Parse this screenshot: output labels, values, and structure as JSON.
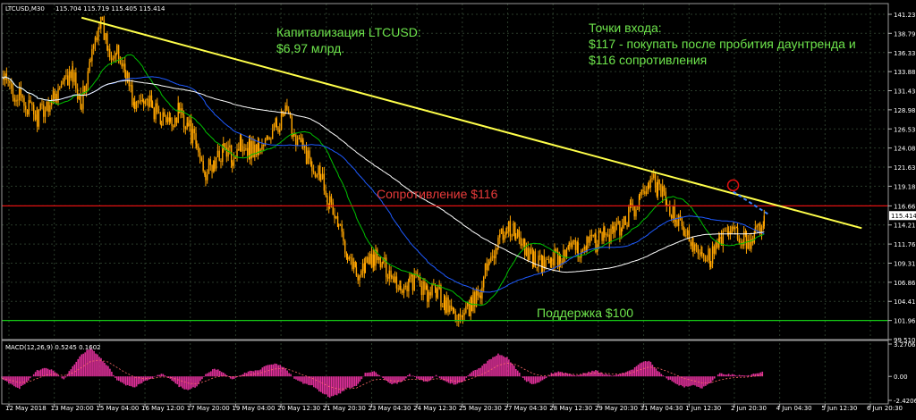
{
  "window": {
    "symbol_label": "LTCUSD,M30",
    "ohlc_text": "115.704 115.719 115.405 115.414"
  },
  "annotations": {
    "cap_line1": "Капитализация LTCUSD:",
    "cap_line2": "$6,97 млрд.",
    "entry_line1": "Точки входа:",
    "entry_line2": "$117 - покупать после пробития даунтренда и",
    "entry_line3": "$116 сопротивления",
    "resistance_label": "Сопротивление $116",
    "support_label": "Поддержка $100"
  },
  "colors": {
    "background": "#000000",
    "grid": "#2a3b2a",
    "candles": "#ffa500",
    "ma_fast": "#00c000",
    "ma_mid": "#1e5aff",
    "ma_slow": "#ffffff",
    "trendline": "#ffff4a",
    "resistance": "#e01010",
    "support": "#14c814",
    "annotation_text": "#6ee54c",
    "resistance_text": "#e83a3a",
    "macd_hist": "#e0309a",
    "macd_signal": "#ff6a6a",
    "breakout_marker": "#e01010",
    "breakout_arrow": "#3c82ff",
    "axis_text": "#ffffff"
  },
  "chart_data": [
    {
      "type": "line",
      "title": "LTCUSD,M30",
      "subtitle": "115.704 115.719 115.405 115.414",
      "ylim": [
        99.51,
        141.23
      ],
      "y_ticks": [
        "141.230",
        "138.790",
        "136.330",
        "133.880",
        "131.430",
        "128.980",
        "126.530",
        "124.080",
        "121.630",
        "119.180",
        "116.660",
        "114.210",
        "111.760",
        "109.310",
        "106.860",
        "104.410",
        "101.960",
        "99.510"
      ],
      "current_price": "115.414",
      "x_ticks": [
        "12 May 2018",
        "13 May 20:00",
        "15 May 04:00",
        "16 May 12:00",
        "17 May 20:00",
        "19 May 04:00",
        "20 May 12:30",
        "21 May 20:30",
        "23 May 04:30",
        "24 May 12:30",
        "25 May 20:30",
        "27 May 04:30",
        "28 May 12:30",
        "29 May 20:30",
        "31 May 04:30",
        "1 Jun 12:30",
        "2 Jun 20:30",
        "4 Jun 04:30",
        "5 Jun 12:30",
        "6 Jun 20:30"
      ],
      "price_path": [
        [
          0,
          133
        ],
        [
          4,
          128
        ],
        [
          6,
          131
        ],
        [
          8,
          133.5
        ],
        [
          9,
          130
        ],
        [
          10,
          135
        ],
        [
          11,
          140.5
        ],
        [
          12,
          137
        ],
        [
          13,
          136
        ],
        [
          14,
          134
        ],
        [
          15,
          129
        ],
        [
          16,
          131
        ],
        [
          17,
          129
        ],
        [
          18,
          128
        ],
        [
          19,
          127
        ],
        [
          20,
          129
        ],
        [
          21,
          127
        ],
        [
          22,
          124
        ],
        [
          23,
          121
        ],
        [
          24,
          122
        ],
        [
          25,
          124
        ],
        [
          26,
          123
        ],
        [
          27,
          125
        ],
        [
          28,
          124
        ],
        [
          29,
          124
        ],
        [
          30,
          125
        ],
        [
          31,
          127
        ],
        [
          32,
          128.5
        ],
        [
          33,
          126
        ],
        [
          34,
          124
        ],
        [
          35,
          122
        ],
        [
          36,
          121
        ],
        [
          37,
          117
        ],
        [
          38,
          114
        ],
        [
          39,
          111
        ],
        [
          40,
          108
        ],
        [
          41,
          109
        ],
        [
          42,
          110
        ],
        [
          43,
          109
        ],
        [
          44,
          108
        ],
        [
          45,
          106
        ],
        [
          46,
          107
        ],
        [
          47,
          107
        ],
        [
          48,
          105
        ],
        [
          49,
          106
        ],
        [
          50,
          104
        ],
        [
          51,
          103
        ],
        [
          52,
          102
        ],
        [
          53,
          104
        ],
        [
          54,
          106
        ],
        [
          55,
          110
        ],
        [
          56,
          112
        ],
        [
          57,
          114
        ],
        [
          58,
          113
        ],
        [
          59,
          111
        ],
        [
          60,
          110
        ],
        [
          61,
          109
        ],
        [
          62,
          110
        ],
        [
          63,
          110
        ],
        [
          64,
          111
        ],
        [
          65,
          111
        ],
        [
          66,
          112
        ],
        [
          67,
          112
        ],
        [
          68,
          113
        ],
        [
          69,
          113.5
        ],
        [
          70,
          114
        ],
        [
          71,
          116
        ],
        [
          72,
          117
        ],
        [
          73,
          120
        ],
        [
          74,
          119
        ],
        [
          75,
          117
        ],
        [
          76,
          115
        ],
        [
          77,
          113
        ],
        [
          78,
          112
        ],
        [
          79,
          111
        ],
        [
          80,
          110
        ],
        [
          81,
          112
        ],
        [
          82,
          113
        ],
        [
          83,
          113
        ],
        [
          84,
          112
        ],
        [
          85,
          113
        ],
        [
          86,
          115.4
        ]
      ],
      "moving_averages": [
        {
          "name": "fast",
          "color": "#00c000",
          "period": 6
        },
        {
          "name": "mid",
          "color": "#1e5aff",
          "period": 14
        },
        {
          "name": "slow",
          "color": "#ffffff",
          "period": 30
        }
      ],
      "trendline": {
        "from": [
          9,
          140.8
        ],
        "to": [
          97,
          113.8
        ]
      },
      "resistance": 116.66,
      "support": 101.96
    },
    {
      "type": "bar",
      "title": "MACD(12,26,9) 0.5245 0.1602",
      "ylim": [
        -2.4206,
        3.2706
      ],
      "y_ticks": [
        "3.2706",
        "0.00",
        "-2.4206"
      ],
      "x": [
        0,
        1,
        2,
        3,
        4,
        5,
        6,
        7,
        8,
        9,
        10,
        11,
        12,
        13,
        14,
        15,
        16,
        17,
        18,
        19,
        20,
        21,
        22,
        23,
        24,
        25,
        26,
        27,
        28,
        29,
        30,
        31,
        32,
        33,
        34,
        35,
        36,
        37,
        38,
        39,
        40,
        41,
        42,
        43,
        44,
        45,
        46,
        47,
        48,
        49,
        50,
        51,
        52,
        53,
        54,
        55,
        56,
        57,
        58,
        59,
        60,
        61,
        62,
        63,
        64,
        65,
        66,
        67,
        68,
        69,
        70,
        71,
        72,
        73,
        74,
        75,
        76,
        77,
        78,
        79,
        80,
        81,
        82,
        83,
        84,
        85,
        86
      ],
      "values": [
        -0.2,
        -0.8,
        -1.2,
        -0.4,
        0.6,
        0.9,
        0.5,
        -0.3,
        1.0,
        2.2,
        2.9,
        2.0,
        1.0,
        -0.4,
        -0.9,
        -1.1,
        -0.5,
        -0.2,
        0.3,
        -0.2,
        -1.0,
        -1.4,
        -1.0,
        0.2,
        0.8,
        0.4,
        -0.3,
        0.2,
        0.5,
        0.6,
        1.2,
        1.3,
        0.8,
        -0.2,
        -0.7,
        -0.9,
        -1.6,
        -2.1,
        -1.8,
        -1.2,
        -1.0,
        0.3,
        0.6,
        -0.2,
        -0.8,
        -0.6,
        0.2,
        -0.3,
        -0.6,
        0.1,
        -0.5,
        -0.8,
        -0.6,
        0.5,
        0.9,
        1.7,
        2.3,
        1.9,
        0.8,
        -0.4,
        -0.8,
        -0.4,
        0.3,
        0.5,
        0.2,
        0.1,
        0.4,
        0.6,
        0.2,
        0.1,
        0.3,
        0.6,
        1.4,
        1.6,
        0.6,
        -0.2,
        -0.7,
        -1.1,
        -0.9,
        -1.2,
        -0.6,
        0.3,
        0.2,
        0.1,
        0.0,
        0.3,
        0.5
      ]
    }
  ]
}
